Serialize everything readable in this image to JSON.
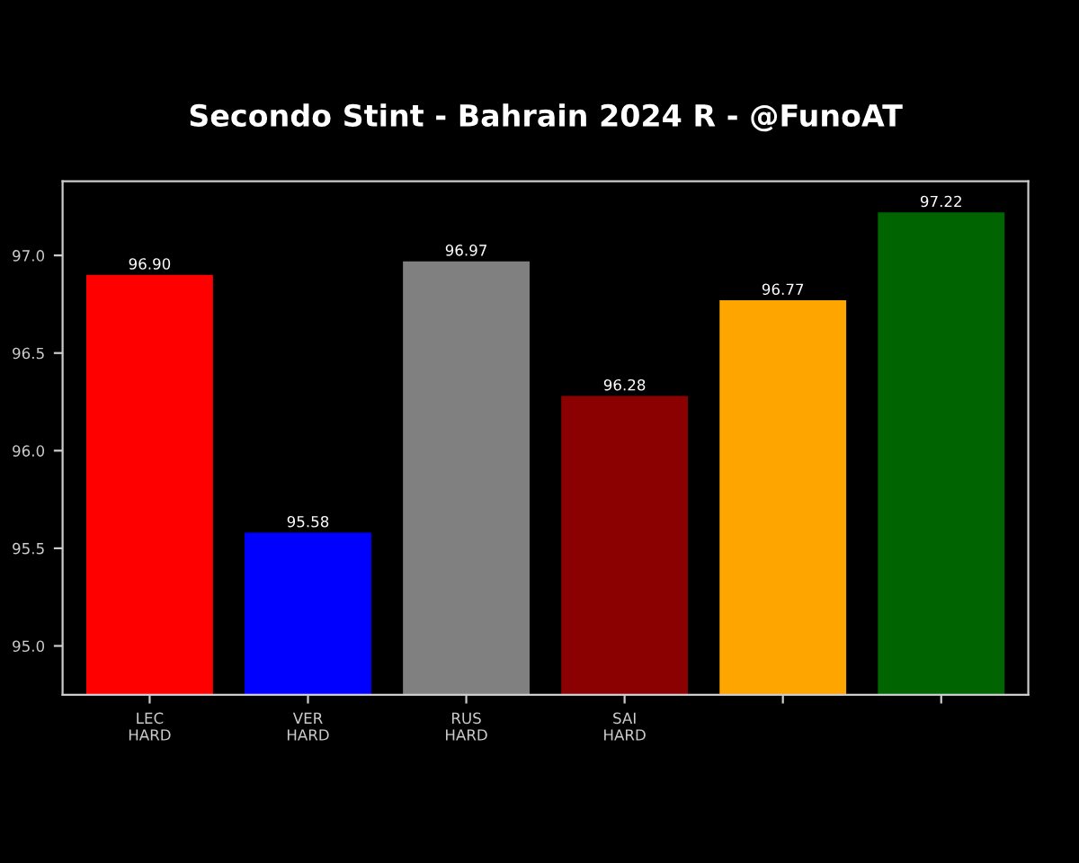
{
  "chart_data": {
    "type": "bar",
    "title": "Secondo Stint - Bahrain 2024 R - @FunoAT",
    "categories": [
      "LEC\nHARD",
      "VER\nHARD",
      "RUS\nHARD",
      "SAI\nHARD",
      null,
      null
    ],
    "values": [
      96.9,
      95.58,
      96.97,
      96.28,
      96.77,
      97.22
    ],
    "colors": [
      "#ff0000",
      "#0000ff",
      "#808080",
      "#8b0000",
      "#ffa500",
      "#006400"
    ],
    "value_labels": [
      "96.90",
      "95.58",
      "96.97",
      "96.28",
      "96.77",
      "97.22"
    ],
    "ylim": [
      94.75,
      97.38
    ],
    "yticks": [
      {
        "value": 95.0,
        "label": "95.0"
      },
      {
        "value": 95.5,
        "label": "95.5"
      },
      {
        "value": 96.0,
        "label": "96.0"
      },
      {
        "value": 96.5,
        "label": "96.5"
      },
      {
        "value": 97.0,
        "label": "97.0"
      }
    ],
    "grid": false,
    "legend": false
  }
}
